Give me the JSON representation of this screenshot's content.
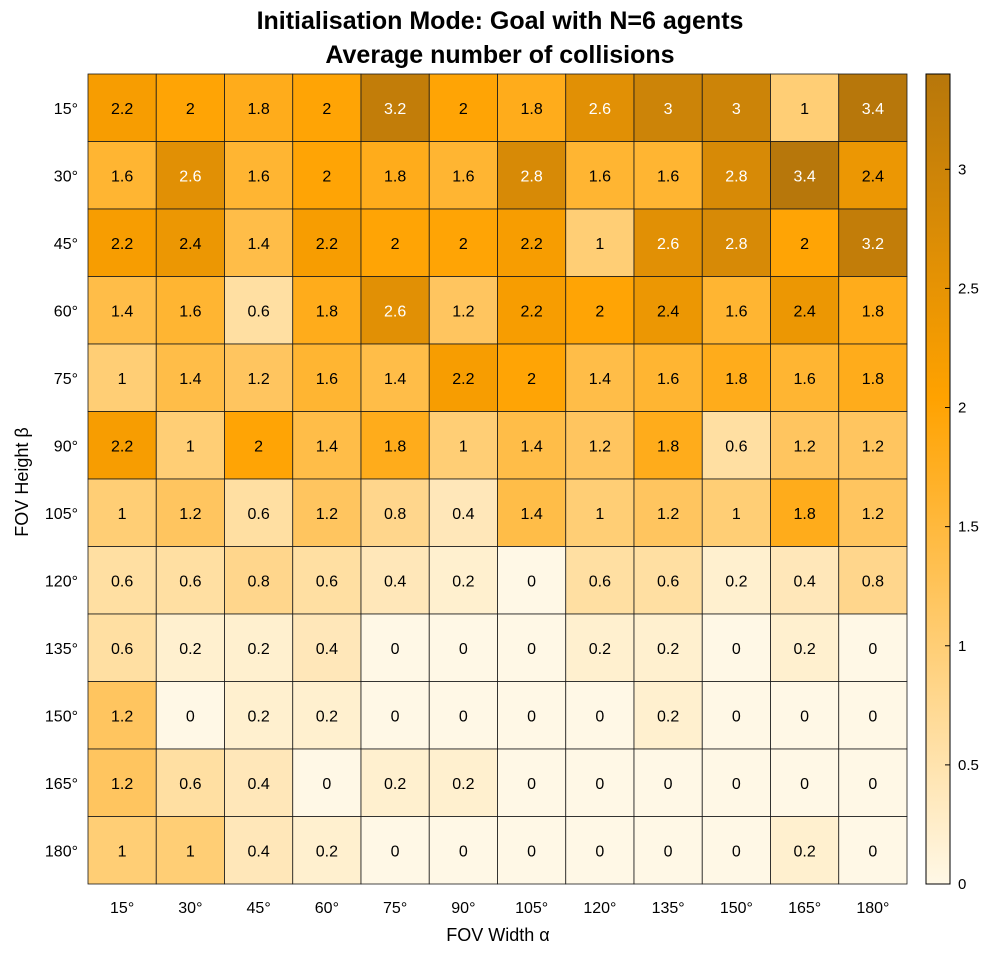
{
  "chart_data": {
    "type": "heatmap",
    "title_lines": [
      "Initialisation Mode: Goal with N=6 agents",
      "Average number of collisions"
    ],
    "xlabel": "FOV Width α",
    "ylabel": "FOV Height β",
    "x_categories": [
      "15°",
      "30°",
      "45°",
      "60°",
      "75°",
      "90°",
      "105°",
      "120°",
      "135°",
      "150°",
      "165°",
      "180°"
    ],
    "y_categories": [
      "15°",
      "30°",
      "45°",
      "60°",
      "75°",
      "90°",
      "105°",
      "120°",
      "135°",
      "150°",
      "165°",
      "180°"
    ],
    "values": [
      [
        2.2,
        2,
        1.8,
        2,
        3.2,
        2,
        1.8,
        2.6,
        3,
        3,
        1,
        3.4
      ],
      [
        1.6,
        2.6,
        1.6,
        2,
        1.8,
        1.6,
        2.8,
        1.6,
        1.6,
        2.8,
        3.4,
        2.4
      ],
      [
        2.2,
        2.4,
        1.4,
        2.2,
        2,
        2,
        2.2,
        1,
        2.6,
        2.8,
        2,
        3.2
      ],
      [
        1.4,
        1.6,
        0.6,
        1.8,
        2.6,
        1.2,
        2.2,
        2,
        2.4,
        1.6,
        2.4,
        1.8
      ],
      [
        1,
        1.4,
        1.2,
        1.6,
        1.4,
        2.2,
        2,
        1.4,
        1.6,
        1.8,
        1.6,
        1.8
      ],
      [
        2.2,
        1,
        2,
        1.4,
        1.8,
        1,
        1.4,
        1.2,
        1.8,
        0.6,
        1.2,
        1.2
      ],
      [
        1,
        1.2,
        0.6,
        1.2,
        0.8,
        0.4,
        1.4,
        1,
        1.2,
        1,
        1.8,
        1.2
      ],
      [
        0.6,
        0.6,
        0.8,
        0.6,
        0.4,
        0.2,
        0,
        0.6,
        0.6,
        0.2,
        0.4,
        0.8
      ],
      [
        0.6,
        0.2,
        0.2,
        0.4,
        0,
        0,
        0,
        0.2,
        0.2,
        0,
        0.2,
        0
      ],
      [
        1.2,
        0,
        0.2,
        0.2,
        0,
        0,
        0,
        0,
        0.2,
        0,
        0,
        0
      ],
      [
        1.2,
        0.6,
        0.4,
        0,
        0.2,
        0.2,
        0,
        0,
        0,
        0,
        0,
        0
      ],
      [
        1,
        1,
        0.4,
        0.2,
        0,
        0,
        0,
        0,
        0,
        0,
        0.2,
        0
      ]
    ],
    "colorbar": {
      "min": 0,
      "max": 3.4,
      "ticks": [
        0,
        0.5,
        1,
        1.5,
        2,
        2.5,
        3
      ],
      "tick_labels": [
        "0",
        "0.5",
        "1",
        "1.5",
        "2",
        "2.5",
        "3"
      ],
      "colors": [
        "#fff8e6",
        "#ffa200",
        "#b7770b"
      ]
    },
    "grid": true
  }
}
